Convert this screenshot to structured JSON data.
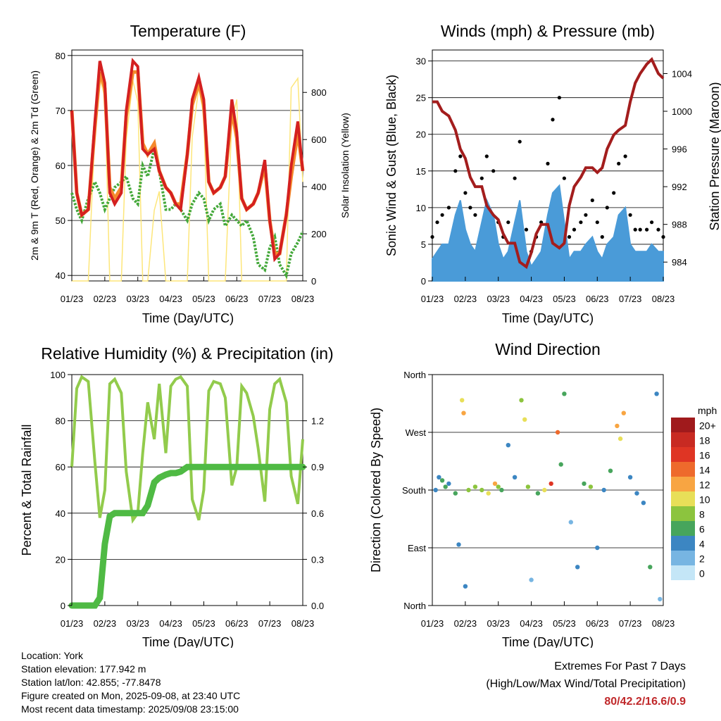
{
  "colors": {
    "temp_2m": "#d42020",
    "temp_9m": "#f58a2c",
    "dewpoint": "#44a83a",
    "solar": "#fde67a",
    "wind": "#4a9bd8",
    "gust": "#000000",
    "pressure": "#a31d1d",
    "rh": "#92cb4c",
    "precip": "#4fba44"
  },
  "charts": {
    "temperature": {
      "title": "Temperature (F)",
      "ylabel": "2m & 9m T (Red, Orange) & 2m Td (Green)",
      "y2label": "Solar Insolation (Yellow)",
      "xlabel": "Time (Day/UTC)",
      "xticks": [
        "01/23",
        "02/23",
        "03/23",
        "04/23",
        "05/23",
        "06/23",
        "07/23",
        "08/23"
      ],
      "yticks": [
        "40",
        "50",
        "60",
        "70",
        "80"
      ],
      "y2ticks": [
        "0",
        "200",
        "400",
        "600",
        "800"
      ]
    },
    "winds": {
      "title": "Winds (mph) & Pressure (mb)",
      "ylabel": "Sonic Wind & Gust (Blue, Black)",
      "y2label": "Station Pressure (Maroon)",
      "xlabel": "Time (Day/UTC)",
      "xticks": [
        "01/23",
        "02/23",
        "03/23",
        "04/23",
        "05/23",
        "06/23",
        "07/23",
        "08/23"
      ],
      "yticks": [
        "0",
        "5",
        "10",
        "15",
        "20",
        "25",
        "30"
      ],
      "y2ticks": [
        "984",
        "988",
        "992",
        "996",
        "1000",
        "1004"
      ]
    },
    "humidity": {
      "title": "Relative Humidity (%) & Precipitation (in)",
      "ylabel": "Percent & Total Rainfall",
      "xlabel": "Time (Day/UTC)",
      "xticks": [
        "01/23",
        "02/23",
        "03/23",
        "04/23",
        "05/23",
        "06/23",
        "07/23",
        "08/23"
      ],
      "yticks": [
        "0",
        "20",
        "40",
        "60",
        "80",
        "100"
      ],
      "y2ticks": [
        "0.0",
        "0.3",
        "0.6",
        "0.9",
        "1.2"
      ]
    },
    "direction": {
      "title": "Wind Direction",
      "ylabel": "Direction (Colored By Speed)",
      "xlabel": "Time (Day/UTC)",
      "xticks": [
        "01/23",
        "02/23",
        "03/23",
        "04/23",
        "05/23",
        "06/23",
        "07/23",
        "08/23"
      ],
      "yticks": [
        "North",
        "East",
        "South",
        "West",
        "North"
      ],
      "legend_title": "mph",
      "legend_labels": [
        "20+",
        "18",
        "16",
        "14",
        "12",
        "10",
        "8",
        "6",
        "4",
        "2",
        "0"
      ],
      "legend_colors": [
        "#a01a1c",
        "#c82a22",
        "#df3524",
        "#ee6a2c",
        "#f8a542",
        "#e8df58",
        "#8cc43e",
        "#47a55c",
        "#3c86c2",
        "#77b5e2",
        "#c4e6f7"
      ]
    }
  },
  "chart_data": [
    {
      "type": "line",
      "title": "Temperature (F)",
      "xlabel": "Time (Day/UTC)",
      "ylabel": "2m & 9m T (Red, Orange) & 2m Td (Green)",
      "y2label": "Solar Insolation (Yellow)",
      "x": [
        0,
        0.15,
        0.3,
        0.5,
        0.7,
        0.85,
        1.0,
        1.15,
        1.3,
        1.5,
        1.65,
        1.85,
        2.0,
        2.15,
        2.3,
        2.5,
        2.65,
        2.85,
        3.0,
        3.15,
        3.3,
        3.5,
        3.65,
        3.85,
        4.0,
        4.15,
        4.3,
        4.5,
        4.65,
        4.85,
        5.0,
        5.15,
        5.3,
        5.5,
        5.65,
        5.85,
        6.0,
        6.15,
        6.3,
        6.5,
        6.65,
        6.85,
        7.0
      ],
      "ylim": [
        39,
        81
      ],
      "y2lim": [
        0,
        980
      ],
      "series": [
        {
          "values": [
            70,
            55,
            51,
            52,
            68,
            79,
            75,
            55,
            53,
            55,
            70,
            79,
            78,
            63,
            62,
            63,
            59,
            56,
            55,
            53,
            52,
            62,
            72,
            76,
            72,
            57,
            55,
            56,
            58,
            72,
            66,
            54,
            52,
            53,
            55,
            61,
            50,
            43,
            44,
            51,
            60,
            68,
            59
          ]
        },
        {
          "values": [
            70,
            55,
            51,
            52,
            67,
            77,
            74,
            56,
            54,
            56,
            69,
            77,
            77,
            64,
            62,
            64,
            59,
            56,
            55,
            53,
            53,
            62,
            71,
            75,
            71,
            57,
            55,
            56,
            58,
            70,
            65,
            54,
            52,
            53,
            55,
            60,
            50,
            44,
            44,
            51,
            58,
            66,
            59
          ]
        },
        {
          "values": [
            55,
            52,
            50,
            54,
            57,
            55,
            52,
            54,
            56,
            57,
            58,
            54,
            53,
            60,
            58,
            63,
            59,
            52,
            52,
            53,
            52,
            50,
            53,
            55,
            54,
            50,
            52,
            53,
            49,
            51,
            50,
            49,
            50,
            47,
            42,
            41,
            45,
            47,
            42,
            40,
            44,
            46,
            48
          ]
        },
        {
          "values": [
            0,
            0,
            0,
            0,
            640,
            860,
            780,
            0,
            0,
            0,
            600,
            850,
            760,
            0,
            0,
            300,
            380,
            0,
            0,
            0,
            0,
            0,
            610,
            820,
            700,
            0,
            0,
            0,
            0,
            680,
            770,
            0,
            0,
            0,
            0,
            0,
            0,
            0,
            0,
            0,
            820,
            860,
            420
          ]
        }
      ]
    },
    {
      "type": "line",
      "title": "Winds (mph) & Pressure (mb)",
      "xlabel": "Time (Day/UTC)",
      "ylabel": "Sonic Wind & Gust (Blue, Black)",
      "y2label": "Station Pressure (Maroon)",
      "x": [
        0,
        0.15,
        0.3,
        0.5,
        0.7,
        0.85,
        1.0,
        1.15,
        1.3,
        1.5,
        1.65,
        1.85,
        2.0,
        2.15,
        2.3,
        2.5,
        2.65,
        2.85,
        3.0,
        3.15,
        3.3,
        3.5,
        3.65,
        3.85,
        4.0,
        4.15,
        4.3,
        4.5,
        4.65,
        4.85,
        5.0,
        5.15,
        5.3,
        5.5,
        5.65,
        5.85,
        6.0,
        6.15,
        6.3,
        6.5,
        6.65,
        6.85,
        7.0
      ],
      "ylim": [
        0,
        31.5
      ],
      "y2lim": [
        982,
        1006.5
      ],
      "series": [
        {
          "values": [
            3,
            4,
            5,
            5,
            9,
            11,
            7,
            5,
            4,
            8,
            11,
            9,
            5,
            3,
            4,
            8,
            11,
            4,
            2,
            3,
            4,
            9,
            12,
            13,
            8,
            3,
            4,
            4,
            5,
            6,
            4,
            3,
            5,
            6,
            9,
            10,
            5,
            4,
            4,
            4,
            5,
            4,
            4
          ]
        },
        {
          "values": [
            6,
            8,
            9,
            10,
            15,
            17,
            12,
            10,
            9,
            14,
            17,
            15,
            8,
            6,
            8,
            14,
            19,
            7,
            4,
            6,
            8,
            16,
            22,
            25,
            14,
            6,
            7,
            8,
            9,
            11,
            8,
            6,
            10,
            12,
            16,
            17,
            9,
            7,
            7,
            7,
            8,
            7,
            6
          ]
        },
        {
          "values": [
            1001,
            1001,
            1000,
            999.5,
            998,
            996,
            995,
            993,
            992,
            992,
            990,
            989,
            988.5,
            987,
            986,
            986,
            984,
            983.5,
            985,
            987,
            988,
            988,
            986,
            985.5,
            986,
            990,
            992,
            993,
            994,
            994,
            993.5,
            994,
            996,
            997.5,
            998,
            998.5,
            1001,
            1003,
            1004,
            1005,
            1005.5,
            1004,
            1003.5
          ]
        }
      ]
    },
    {
      "type": "line",
      "title": "Relative Humidity (%) & Precipitation (in)",
      "xlabel": "Time (Day/UTC)",
      "ylabel": "Percent & Total Rainfall",
      "x": [
        0,
        0.15,
        0.3,
        0.5,
        0.7,
        0.85,
        1.0,
        1.15,
        1.3,
        1.5,
        1.65,
        1.85,
        2.0,
        2.15,
        2.3,
        2.5,
        2.65,
        2.85,
        3.0,
        3.15,
        3.3,
        3.5,
        3.65,
        3.85,
        4.0,
        4.15,
        4.3,
        4.5,
        4.65,
        4.85,
        5.0,
        5.15,
        5.3,
        5.5,
        5.65,
        5.85,
        6.0,
        6.15,
        6.3,
        6.5,
        6.65,
        6.85,
        7.0
      ],
      "ylim": [
        0,
        100
      ],
      "y2lim": [
        0,
        1.5
      ],
      "series": [
        {
          "values": [
            60,
            94,
            99,
            97,
            62,
            38,
            50,
            96,
            98,
            92,
            58,
            37,
            40,
            66,
            88,
            72,
            96,
            66,
            95,
            98,
            99,
            95,
            46,
            37,
            50,
            93,
            97,
            96,
            90,
            52,
            60,
            95,
            92,
            82,
            68,
            45,
            85,
            96,
            98,
            88,
            56,
            44,
            72
          ]
        },
        {
          "values": [
            0,
            0,
            0,
            0,
            0,
            0.05,
            0.4,
            0.58,
            0.6,
            0.6,
            0.6,
            0.6,
            0.6,
            0.6,
            0.65,
            0.8,
            0.83,
            0.85,
            0.86,
            0.86,
            0.87,
            0.9,
            0.9,
            0.9,
            0.9,
            0.9,
            0.9,
            0.9,
            0.9,
            0.9,
            0.9,
            0.9,
            0.9,
            0.9,
            0.9,
            0.9,
            0.9,
            0.9,
            0.9,
            0.9,
            0.9,
            0.9,
            0.9
          ]
        }
      ]
    },
    {
      "type": "scatter",
      "title": "Wind Direction",
      "xlabel": "Time (Day/UTC)",
      "ylabel": "Direction (Colored By Speed)",
      "xlim": [
        0,
        7
      ],
      "ylim": [
        0,
        360
      ],
      "points": [
        [
          0.1,
          180,
          4
        ],
        [
          0.2,
          200,
          3
        ],
        [
          0.3,
          195,
          6
        ],
        [
          0.4,
          185,
          5
        ],
        [
          0.5,
          190,
          4
        ],
        [
          0.7,
          175,
          6
        ],
        [
          0.8,
          95,
          4
        ],
        [
          0.9,
          320,
          10
        ],
        [
          0.95,
          300,
          12
        ],
        [
          1.0,
          30,
          3
        ],
        [
          1.1,
          180,
          7
        ],
        [
          1.3,
          185,
          8
        ],
        [
          1.5,
          180,
          8
        ],
        [
          1.7,
          175,
          9
        ],
        [
          1.9,
          190,
          11
        ],
        [
          2.0,
          185,
          7
        ],
        [
          2.1,
          180,
          6
        ],
        [
          2.3,
          250,
          3
        ],
        [
          2.5,
          200,
          4
        ],
        [
          2.7,
          320,
          8
        ],
        [
          2.8,
          290,
          10
        ],
        [
          2.9,
          185,
          7
        ],
        [
          3.0,
          40,
          2
        ],
        [
          3.2,
          175,
          6
        ],
        [
          3.4,
          180,
          10
        ],
        [
          3.6,
          190,
          15
        ],
        [
          3.8,
          270,
          13
        ],
        [
          3.9,
          220,
          5
        ],
        [
          4.0,
          330,
          5
        ],
        [
          4.2,
          130,
          2
        ],
        [
          4.4,
          60,
          3
        ],
        [
          4.6,
          190,
          6
        ],
        [
          4.8,
          185,
          7
        ],
        [
          5.0,
          90,
          3
        ],
        [
          5.2,
          180,
          4
        ],
        [
          5.4,
          210,
          5
        ],
        [
          5.6,
          280,
          12
        ],
        [
          5.7,
          260,
          10
        ],
        [
          5.8,
          300,
          11
        ],
        [
          6.0,
          200,
          4
        ],
        [
          6.2,
          175,
          3
        ],
        [
          6.4,
          160,
          4
        ],
        [
          6.6,
          60,
          5
        ],
        [
          6.8,
          330,
          4
        ],
        [
          6.9,
          10,
          2
        ]
      ]
    }
  ],
  "info": {
    "location": "Location: York",
    "elevation": "Station elevation: 177.942 m",
    "latlon": "Station lat/lon: 42.855; -77.8478",
    "created": "Figure created on Mon, 2025-09-08, at 23:40 UTC",
    "recent": "Most recent data timestamp: 2025/09/08 23:15:00"
  },
  "extremes": {
    "line1": "Extremes For Past 7 Days",
    "line2": "(High/Low/Max Wind/Total Precipitation)",
    "value": "80/42.2/16.6/0.9"
  }
}
